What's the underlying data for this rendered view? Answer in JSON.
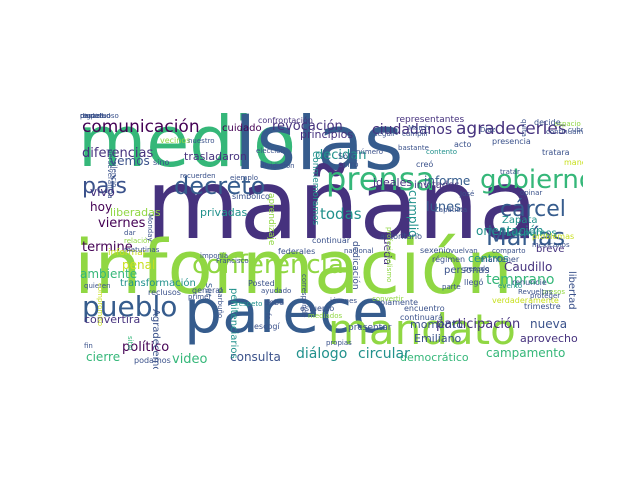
{
  "colors": {
    "green": "#35b779",
    "purple": "#46327e",
    "dark_purple": "#440154",
    "blue": "#365c8d",
    "teal": "#21918c",
    "lime": "#90d743",
    "yellow": "#fde725",
    "yellow_green": "#c8e020",
    "sea": "#1f9e89",
    "slate": "#3b528b",
    "indigo": "#482878"
  },
  "words": [
    {
      "text": "medio",
      "color": "green"
    },
    {
      "text": "Islas",
      "color": "blue"
    },
    {
      "text": "mañana",
      "color": "purple"
    },
    {
      "text": "información",
      "color": "lime"
    },
    {
      "text": "parece",
      "color": "blue"
    },
    {
      "text": "prensa",
      "color": "green"
    },
    {
      "text": "conferencia",
      "color": "lime"
    },
    {
      "text": "mandato",
      "color": "lime"
    },
    {
      "text": "gobierno",
      "color": "green"
    },
    {
      "text": "cárcel",
      "color": "blue"
    },
    {
      "text": "Marías",
      "color": "blue"
    },
    {
      "text": "pueblo",
      "color": "blue"
    },
    {
      "text": "decreto",
      "color": "blue"
    },
    {
      "text": "país",
      "color": "slate"
    },
    {
      "text": "comunicación",
      "color": "dark_purple"
    },
    {
      "text": "agradecerles",
      "color": "purple"
    },
    {
      "text": "ciudadanos",
      "color": "purple"
    },
    {
      "text": "revocación",
      "color": "purple"
    },
    {
      "text": "principios",
      "color": "purple"
    },
    {
      "text": "cuidado",
      "color": "dark_purple"
    },
    {
      "text": "confrontación",
      "color": "purple"
    },
    {
      "text": "representantes",
      "color": "purple"
    },
    {
      "text": "diferencias",
      "color": "purple"
    },
    {
      "text": "trasladaron",
      "color": "purple"
    },
    {
      "text": "vemos",
      "color": "slate"
    },
    {
      "text": "vivo",
      "color": "purple"
    },
    {
      "text": "hoy",
      "color": "dark_purple"
    },
    {
      "text": "termine",
      "color": "dark_purple"
    },
    {
      "text": "viernes",
      "color": "dark_purple"
    },
    {
      "text": "liberadas",
      "color": "lime"
    },
    {
      "text": "penal",
      "color": "yellow_green"
    },
    {
      "text": "informar",
      "color": "yellow_green"
    },
    {
      "text": "ambiente",
      "color": "green"
    },
    {
      "text": "transformación",
      "color": "teal"
    },
    {
      "text": "privadas",
      "color": "teal"
    },
    {
      "text": "todas",
      "color": "teal"
    },
    {
      "text": "decidan",
      "color": "teal"
    },
    {
      "text": "informe",
      "color": "blue"
    },
    {
      "text": "orientación",
      "color": "teal"
    },
    {
      "text": "lunes",
      "color": "blue"
    },
    {
      "text": "cumplió",
      "color": "teal"
    },
    {
      "text": "centros",
      "color": "teal"
    },
    {
      "text": "temprano",
      "color": "green"
    },
    {
      "text": "Zapata",
      "color": "teal"
    },
    {
      "text": "Luchamos",
      "color": "teal"
    },
    {
      "text": "Caudillo",
      "color": "purple"
    },
    {
      "text": "breve",
      "color": "purple"
    },
    {
      "text": "libertad",
      "color": "slate"
    },
    {
      "text": "participación",
      "color": "purple"
    },
    {
      "text": "nueva",
      "color": "slate"
    },
    {
      "text": "aprovecho",
      "color": "purple"
    },
    {
      "text": "campamento",
      "color": "green"
    },
    {
      "text": "democrático",
      "color": "green"
    },
    {
      "text": "diálogo",
      "color": "teal"
    },
    {
      "text": "circular",
      "color": "teal"
    },
    {
      "text": "consulta",
      "color": "slate"
    },
    {
      "text": "cierre",
      "color": "green"
    },
    {
      "text": "político",
      "color": "dark_purple"
    },
    {
      "text": "video",
      "color": "green"
    },
    {
      "text": "Emiliano",
      "color": "slate"
    },
    {
      "text": "momento",
      "color": "slate"
    },
    {
      "text": "convertira",
      "color": "purple"
    },
    {
      "text": "Agradecemos",
      "color": "slate"
    },
    {
      "text": "penitenciarios",
      "color": "teal"
    },
    {
      "text": "Conmemoramos",
      "color": "teal"
    },
    {
      "text": "rueda",
      "color": "purple"
    },
    {
      "text": "ideales",
      "color": "purple"
    },
    {
      "text": "invitados",
      "color": "purple"
    },
    {
      "text": "Sur",
      "color": "blue"
    },
    {
      "text": "Posted",
      "color": "slate"
    },
    {
      "text": "debe",
      "color": "slate"
    },
    {
      "text": "sexenio",
      "color": "slate"
    },
    {
      "text": "personas",
      "color": "slate"
    },
    {
      "text": "aprendizaje",
      "color": "lime"
    },
    {
      "text": "Sólo",
      "color": "slate"
    },
    {
      "text": "cerró",
      "color": "slate"
    },
    {
      "text": "creó",
      "color": "slate"
    },
    {
      "text": "número",
      "color": "slate"
    },
    {
      "text": "presencia",
      "color": "slate"
    },
    {
      "text": "tratara",
      "color": "slate"
    },
    {
      "text": "cubra",
      "color": "slate"
    },
    {
      "text": "acto",
      "color": "slate"
    },
    {
      "text": "bastante",
      "color": "slate"
    },
    {
      "text": "problemas",
      "color": "yellow_green"
    },
    {
      "text": "mexicanos",
      "color": "slate"
    },
    {
      "text": "mantener",
      "color": "slate"
    },
    {
      "text": "renuncie",
      "color": "slate"
    },
    {
      "text": "llegó",
      "color": "slate"
    },
    {
      "text": "parte",
      "color": "slate"
    },
    {
      "text": "continuará",
      "color": "slate"
    },
    {
      "text": "encuentro",
      "color": "slate"
    },
    {
      "text": "solamente",
      "color": "slate"
    },
    {
      "text": "presentar",
      "color": "slate"
    },
    {
      "text": "propias",
      "color": "slate"
    },
    {
      "text": "jóvenes",
      "color": "slate"
    },
    {
      "text": "mediados",
      "color": "lime"
    },
    {
      "text": "esfuerzo",
      "color": "slate"
    },
    {
      "text": "escogí",
      "color": "slate"
    },
    {
      "text": "ayudado",
      "color": "slate"
    },
    {
      "text": "respeto",
      "color": "teal"
    },
    {
      "text": "reclusos",
      "color": "slate"
    },
    {
      "text": "primer",
      "color": "slate"
    },
    {
      "text": "general",
      "color": "slate"
    },
    {
      "text": "quieren",
      "color": "slate"
    },
    {
      "text": "fin",
      "color": "slate"
    },
    {
      "text": "podamos",
      "color": "slate"
    },
    {
      "text": "sitio",
      "color": "green"
    },
    {
      "text": "fe",
      "color": "slate"
    },
    {
      "text": "Garbuño",
      "color": "slate"
    },
    {
      "text": "corresponde",
      "color": "slate"
    },
    {
      "text": "federales",
      "color": "slate"
    },
    {
      "text": "continuar",
      "color": "slate"
    },
    {
      "text": "dedicación",
      "color": "slate"
    },
    {
      "text": "autoritario",
      "color": "slate"
    },
    {
      "text": "profesionalismo",
      "color": "lime"
    },
    {
      "text": "régimen",
      "color": "slate"
    },
    {
      "text": "José",
      "color": "slate"
    },
    {
      "text": "elección",
      "color": "slate"
    },
    {
      "text": "vecinos",
      "color": "lime"
    },
    {
      "text": "sino",
      "color": "slate"
    },
    {
      "text": "dar",
      "color": "slate"
    },
    {
      "text": "relación",
      "color": "lime"
    },
    {
      "text": "matutinas",
      "color": "slate"
    },
    {
      "text": "silencio",
      "color": "slate"
    },
    {
      "text": "simbólico",
      "color": "slate"
    },
    {
      "text": "contento",
      "color": "teal"
    },
    {
      "text": "cumplir",
      "color": "slate"
    },
    {
      "text": "seguir",
      "color": "slate"
    },
    {
      "text": "quita",
      "color": "slate"
    },
    {
      "text": "espacio",
      "color": "lime"
    },
    {
      "text": "continuamos",
      "color": "slate"
    },
    {
      "text": "decide",
      "color": "slate"
    },
    {
      "text": "Díaz",
      "color": "slate"
    },
    {
      "text": "comparto",
      "color": "slate"
    },
    {
      "text": "manera",
      "color": "yellow_green"
    },
    {
      "text": "verdaderamente",
      "color": "yellow_green"
    },
    {
      "text": "presos",
      "color": "lime"
    },
    {
      "text": "Revueltas",
      "color": "slate"
    },
    {
      "text": "trimestre",
      "color": "slate"
    },
    {
      "text": "March",
      "color": "slate"
    },
    {
      "text": "perseverancia",
      "color": "slate"
    },
    {
      "text": "dividieron",
      "color": "slate"
    },
    {
      "text": "convertir",
      "color": "lime"
    },
    {
      "text": "Monday",
      "color": "slate"
    },
    {
      "text": "compromiso",
      "color": "yellow_green"
    },
    {
      "text": "ejemplo",
      "color": "slate"
    },
    {
      "text": "imponía",
      "color": "slate"
    },
    {
      "text": "Francisco",
      "color": "slate"
    },
    {
      "text": "pesado",
      "color": "slate"
    },
    {
      "text": "evento",
      "color": "teal"
    },
    {
      "text": "vuelvan",
      "color": "slate"
    },
    {
      "text": "tratar",
      "color": "slate"
    },
    {
      "text": "proteger",
      "color": "slate"
    },
    {
      "text": "opinar",
      "color": "slate"
    },
    {
      "text": "recuerden",
      "color": "slate"
    },
    {
      "text": "nuestro",
      "color": "slate"
    },
    {
      "text": "nacional",
      "color": "slate"
    },
    {
      "text": "Zapatista",
      "color": "slate"
    },
    {
      "text": "dignidad",
      "color": "slate"
    },
    {
      "text": "respetuoso",
      "color": "slate"
    },
    {
      "text": "pasará",
      "color": "slate"
    },
    {
      "text": "ciudad",
      "color": "slate"
    }
  ]
}
